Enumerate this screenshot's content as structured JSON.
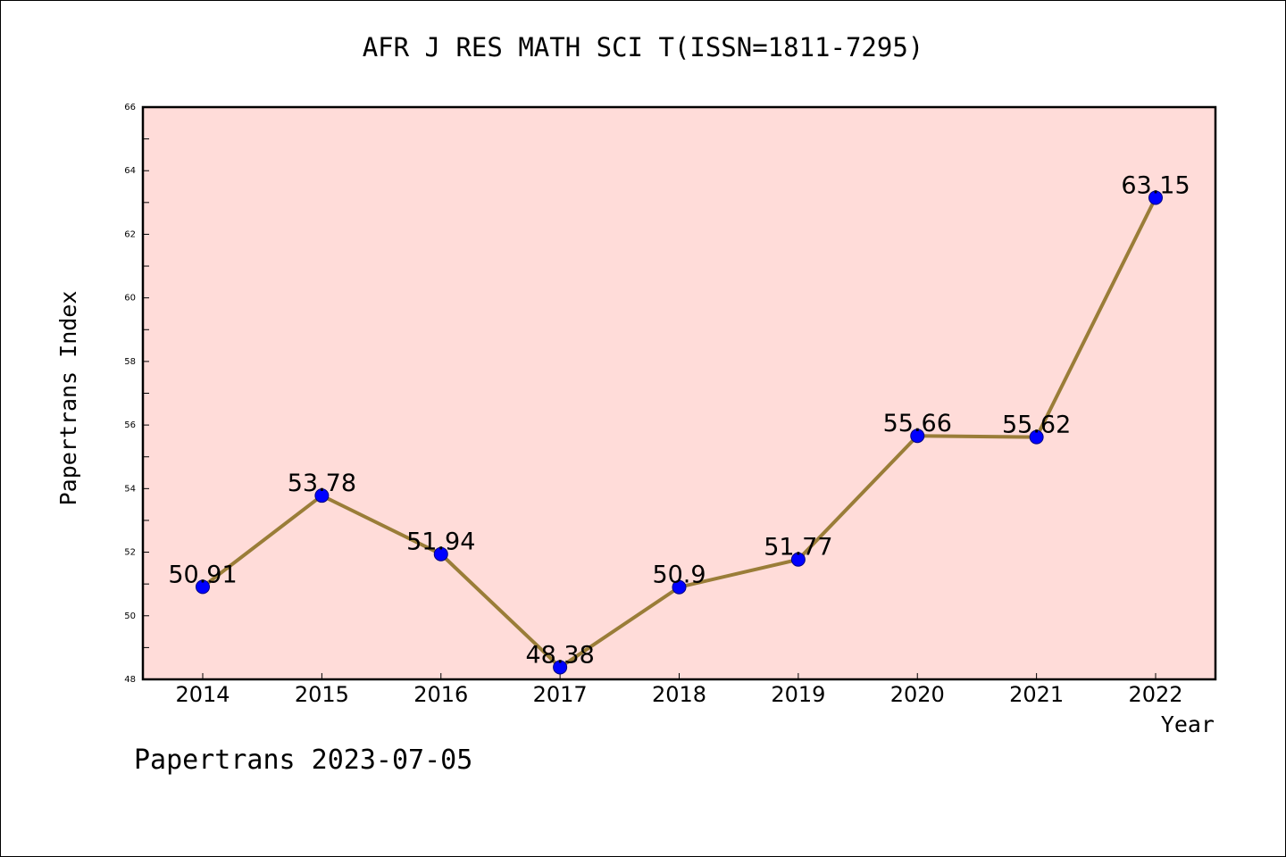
{
  "chart_data": {
    "type": "line",
    "title": "AFR J RES MATH SCI T(ISSN=1811-7295)",
    "xlabel": "Year",
    "ylabel": "Papertrans Index",
    "categories": [
      "2014",
      "2015",
      "2016",
      "2017",
      "2018",
      "2019",
      "2020",
      "2021",
      "2022"
    ],
    "series": [
      {
        "values": [
          50.91,
          53.78,
          51.94,
          48.38,
          50.9,
          51.77,
          55.66,
          55.62,
          63.15
        ]
      }
    ],
    "data_labels": [
      "50.91",
      "53.78",
      "51.94",
      "48.38",
      "50.9",
      "51.77",
      "55.66",
      "55.62",
      "63.15"
    ],
    "ylim": [
      48,
      66
    ],
    "yticks": [
      "48",
      "50",
      "52",
      "54",
      "56",
      "58",
      "60",
      "62",
      "64",
      "66"
    ],
    "grid": false,
    "legend": "none",
    "colors": {
      "plot_background": "#ffdcd9",
      "line": "#9a7d38",
      "marker_fill": "#0000ff",
      "marker_edge": "#000080"
    }
  },
  "footer": {
    "text": "Papertrans 2023-07-05"
  }
}
